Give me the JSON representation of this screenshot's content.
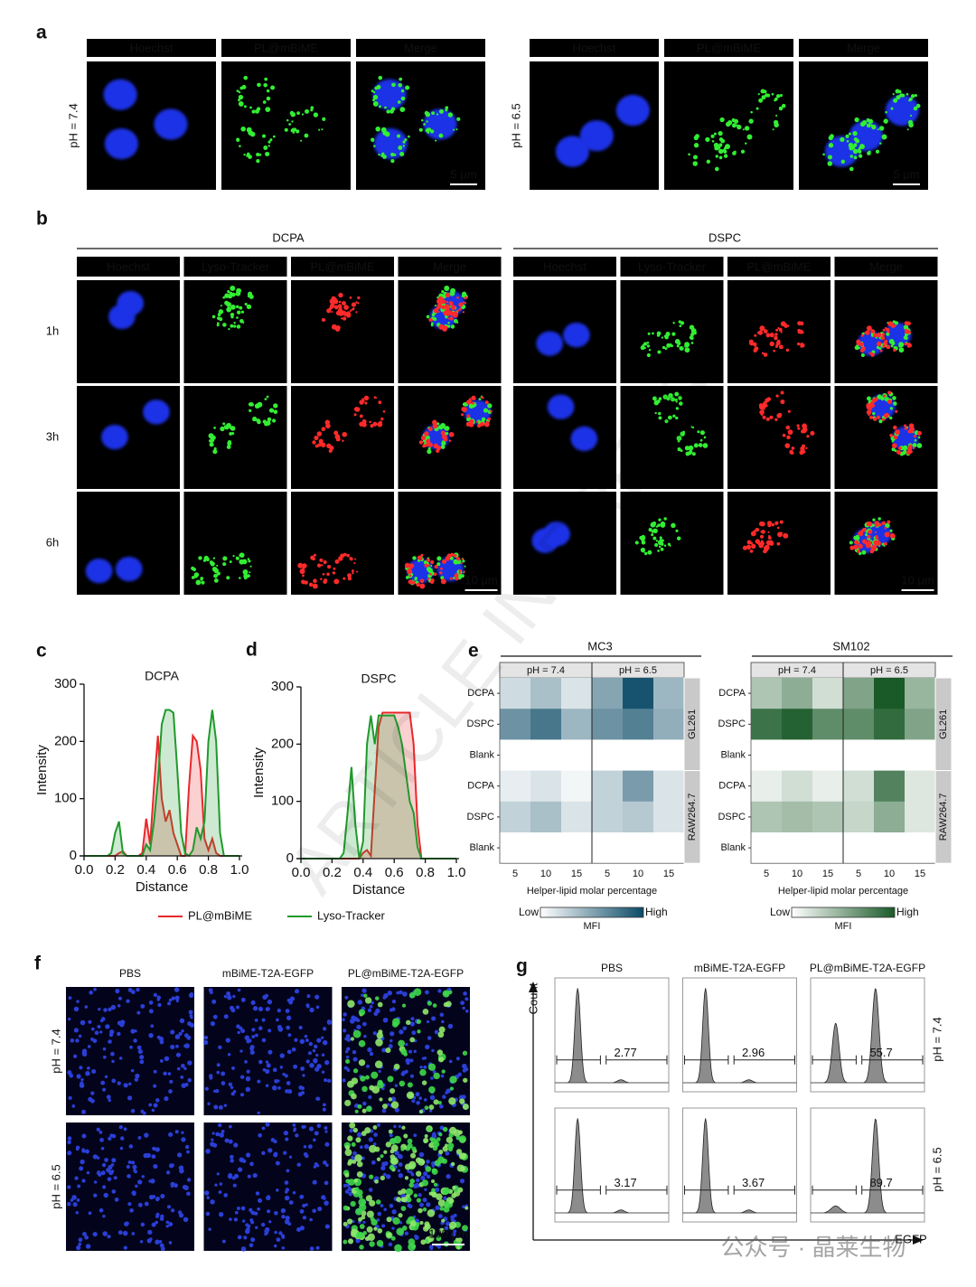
{
  "panel_labels": [
    "a",
    "b",
    "c",
    "d",
    "e",
    "f",
    "g"
  ],
  "panel_a": {
    "groups": [
      {
        "row_label": "pH = 7.4",
        "channels": [
          "Hoechst",
          "PL@mBiME",
          "Merge"
        ],
        "scale_bar": "5 μm"
      },
      {
        "row_label": "pH = 6.5",
        "channels": [
          "Hoechst",
          "PL@mBiME",
          "Merge"
        ],
        "scale_bar": "5 μm"
      }
    ]
  },
  "panel_b": {
    "groups": [
      {
        "title": "DCPA",
        "channels": [
          "Hoechst",
          "Lyso-Tracker",
          "PL@mBiME",
          "Merge"
        ],
        "scale_bar": "10 μm"
      },
      {
        "title": "DSPC",
        "channels": [
          "Hoechst",
          "Lyso-Tracker",
          "PL@mBiME",
          "Merge"
        ],
        "scale_bar": "10 μm"
      }
    ],
    "rows": [
      "1h",
      "3h",
      "6h"
    ]
  },
  "chart_data": [
    {
      "type": "line",
      "title": "DCPA",
      "xlabel": "Distance",
      "ylabel": "Intensity",
      "fill": true,
      "legend": "bottom",
      "x": [
        0,
        0.025,
        0.05,
        0.075,
        0.1,
        0.125,
        0.15,
        0.175,
        0.2,
        0.225,
        0.25,
        0.275,
        0.3,
        0.325,
        0.35,
        0.375,
        0.4,
        0.425,
        0.45,
        0.475,
        0.5,
        0.525,
        0.55,
        0.575,
        0.6,
        0.625,
        0.65,
        0.675,
        0.7,
        0.725,
        0.75,
        0.775,
        0.8,
        0.825,
        0.85,
        0.875,
        0.9,
        0.925,
        0.95,
        0.975,
        1.0
      ],
      "xlim": [
        0,
        1
      ],
      "ylim": [
        0,
        300
      ],
      "xticks": [
        {
          "value": 0,
          "label": "0.0"
        },
        0.2,
        0.4,
        0.6,
        0.8,
        {
          "value": 1,
          "label": "1.0"
        }
      ],
      "yticks": [
        0,
        100,
        200,
        300
      ],
      "series": [
        {
          "name": "PL@mBiME",
          "color": "#e8282b",
          "values": [
            0,
            0,
            0,
            0,
            0,
            0,
            0,
            0,
            0,
            5,
            8,
            0,
            0,
            0,
            0,
            5,
            65,
            20,
            120,
            210,
            100,
            60,
            80,
            40,
            20,
            0,
            0,
            120,
            210,
            200,
            150,
            30,
            10,
            30,
            5,
            0,
            0,
            0,
            0,
            0,
            0
          ]
        },
        {
          "name": "Lyso-Tracker",
          "color": "#1f9a2c",
          "values": [
            0,
            0,
            0,
            0,
            0,
            0,
            0,
            5,
            40,
            60,
            5,
            0,
            0,
            0,
            0,
            0,
            20,
            10,
            60,
            130,
            230,
            255,
            255,
            250,
            150,
            40,
            5,
            0,
            10,
            50,
            30,
            60,
            200,
            255,
            200,
            40,
            0,
            0,
            0,
            0,
            0
          ]
        }
      ]
    },
    {
      "type": "line",
      "title": "DSPC",
      "xlabel": "Distance",
      "ylabel": "Intensity",
      "fill": true,
      "x": [
        0,
        0.025,
        0.05,
        0.075,
        0.1,
        0.125,
        0.15,
        0.175,
        0.2,
        0.225,
        0.25,
        0.275,
        0.3,
        0.325,
        0.35,
        0.375,
        0.4,
        0.425,
        0.45,
        0.475,
        0.5,
        0.525,
        0.55,
        0.575,
        0.6,
        0.625,
        0.65,
        0.675,
        0.7,
        0.725,
        0.75,
        0.775,
        0.8,
        0.825,
        0.85,
        0.875,
        0.9,
        0.925,
        0.95,
        0.975,
        1.0
      ],
      "xlim": [
        0,
        1
      ],
      "ylim": [
        0,
        300
      ],
      "xticks": [
        {
          "value": 0,
          "label": "0.0"
        },
        0.2,
        0.4,
        0.6,
        0.8,
        {
          "value": 1,
          "label": "1.0"
        }
      ],
      "yticks": [
        0,
        100,
        200,
        300
      ],
      "series": [
        {
          "color": "#e8282b",
          "values": [
            0,
            0,
            0,
            0,
            0,
            0,
            0,
            0,
            0,
            0,
            0,
            0,
            0,
            0,
            0,
            0,
            10,
            15,
            5,
            120,
            230,
            255,
            255,
            255,
            255,
            255,
            255,
            255,
            255,
            200,
            60,
            0,
            0,
            0,
            0,
            0,
            0,
            0,
            0,
            0,
            0
          ]
        },
        {
          "color": "#1f9a2c",
          "values": [
            0,
            0,
            0,
            0,
            0,
            0,
            0,
            0,
            0,
            0,
            0,
            10,
            80,
            160,
            60,
            0,
            30,
            200,
            250,
            200,
            250,
            250,
            250,
            250,
            250,
            230,
            200,
            150,
            100,
            80,
            20,
            0,
            0,
            0,
            0,
            0,
            0,
            0,
            0,
            0,
            0
          ]
        }
      ]
    },
    {
      "type": "heatmap",
      "title": "MC3",
      "column_groups": [
        "pH = 7.4",
        "pH = 6.5"
      ],
      "row_groups": [
        "GL261",
        "RAW264.7"
      ],
      "rows": [
        "DCPA",
        "DSPC",
        "Blank",
        "DCPA",
        "DSPC",
        "Blank"
      ],
      "columns": [
        5,
        10,
        15,
        5,
        10,
        15
      ],
      "values": [
        [
          20,
          35,
          15,
          50,
          95,
          40
        ],
        [
          60,
          75,
          40,
          60,
          70,
          45
        ],
        [
          0,
          0,
          0,
          0,
          0,
          0
        ],
        [
          10,
          15,
          5,
          25,
          55,
          15
        ],
        [
          25,
          35,
          15,
          25,
          30,
          15
        ],
        [
          0,
          0,
          0,
          0,
          0,
          0
        ]
      ],
      "zlim": [
        0,
        100
      ],
      "color_low": "#ffffff",
      "color_high": "#0b4a66",
      "xlabel": "Helper-lipid molar percentage",
      "colorbar": {
        "low": "Low",
        "high": "High",
        "label": "MFI"
      }
    },
    {
      "type": "heatmap",
      "title": "SM102",
      "column_groups": [
        "pH = 7.4",
        "pH = 6.5"
      ],
      "row_groups": [
        "GL261",
        "RAW264.7"
      ],
      "rows": [
        "DCPA",
        "DSPC",
        "Blank",
        "DCPA",
        "DSPC",
        "Blank"
      ],
      "columns": [
        5,
        10,
        15,
        5,
        10,
        15
      ],
      "values": [
        [
          35,
          50,
          20,
          55,
          100,
          45
        ],
        [
          85,
          95,
          70,
          70,
          90,
          55
        ],
        [
          0,
          0,
          0,
          0,
          0,
          0
        ],
        [
          10,
          20,
          10,
          20,
          75,
          15
        ],
        [
          35,
          40,
          35,
          25,
          50,
          15
        ],
        [
          0,
          0,
          0,
          0,
          0,
          0
        ]
      ],
      "zlim": [
        0,
        100
      ],
      "color_low": "#ffffff",
      "color_high": "#1a5a28",
      "xlabel": "Helper-lipid molar percentage",
      "colorbar": {
        "low": "Low",
        "high": "High",
        "label": "MFI"
      }
    }
  ],
  "panel_f": {
    "columns": [
      "PBS",
      "mBiME-T2A-EGFP",
      "PL@mBiME-T2A-EGFP"
    ],
    "rows": [
      "pH = 7.4",
      "pH = 6.5"
    ],
    "scale_bar": "100 μm"
  },
  "panel_g": {
    "columns": [
      "PBS",
      "mBiME-T2A-EGFP",
      "PL@mBiME-T2A-EGFP"
    ],
    "rows": [
      "pH = 7.4",
      "pH = 6.5"
    ],
    "gates": [
      [
        2.77,
        2.96,
        55.7
      ],
      [
        3.17,
        3.67,
        89.7
      ]
    ],
    "y_label": "Count",
    "x_label": "EGFP"
  },
  "watermarks": [
    "ARTICLE IN PRESS",
    "公众号 · 晶莱生物"
  ]
}
